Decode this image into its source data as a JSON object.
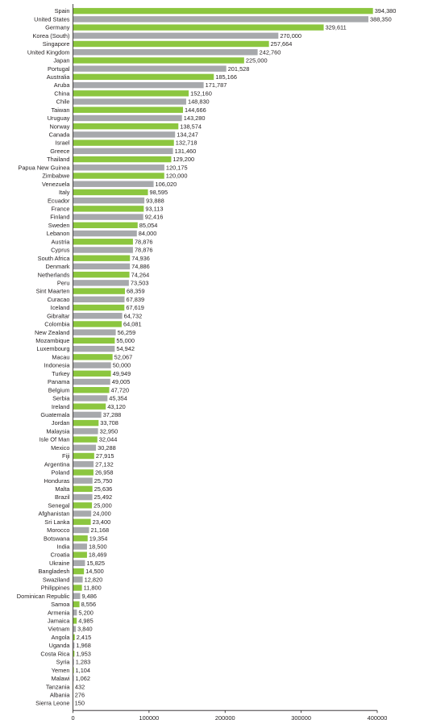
{
  "chart_data": {
    "type": "bar",
    "orientation": "horizontal",
    "colors": {
      "green": "#8cc63f",
      "gray": "#a7a9ac"
    },
    "xlim": [
      0,
      400000
    ],
    "xticks": [
      "0",
      "100000",
      "200000",
      "300000",
      "400000"
    ],
    "bars": [
      {
        "category": "Spain",
        "value": 394380,
        "label": "394,380",
        "color": "green"
      },
      {
        "category": "United States",
        "value": 388350,
        "label": "388,350",
        "color": "gray"
      },
      {
        "category": "Germany",
        "value": 329611,
        "label": "329,611",
        "color": "green"
      },
      {
        "category": "Korea (South)",
        "value": 270000,
        "label": "270,000",
        "color": "gray"
      },
      {
        "category": "Singapore",
        "value": 257664,
        "label": "257,664",
        "color": "green"
      },
      {
        "category": "United Kingdom",
        "value": 242760,
        "label": "242,760",
        "color": "gray"
      },
      {
        "category": "Japan",
        "value": 225000,
        "label": "225,000",
        "color": "green"
      },
      {
        "category": "Portugal",
        "value": 201528,
        "label": "201,528",
        "color": "gray"
      },
      {
        "category": "Australia",
        "value": 185166,
        "label": "185,166",
        "color": "green"
      },
      {
        "category": "Aruba",
        "value": 171787,
        "label": "171,787",
        "color": "gray"
      },
      {
        "category": "China",
        "value": 152160,
        "label": "152,160",
        "color": "green"
      },
      {
        "category": "Chile",
        "value": 148830,
        "label": "148,830",
        "color": "gray"
      },
      {
        "category": "Taiwan",
        "value": 144666,
        "label": "144,666",
        "color": "green"
      },
      {
        "category": "Uruguay",
        "value": 143280,
        "label": "143,280",
        "color": "gray"
      },
      {
        "category": "Norway",
        "value": 138574,
        "label": "138,574",
        "color": "green"
      },
      {
        "category": "Canada",
        "value": 134247,
        "label": "134,247",
        "color": "gray"
      },
      {
        "category": "Israel",
        "value": 132718,
        "label": "132,718",
        "color": "green"
      },
      {
        "category": "Greece",
        "value": 131460,
        "label": "131,460",
        "color": "gray"
      },
      {
        "category": "Thailand",
        "value": 129200,
        "label": "129,200",
        "color": "green"
      },
      {
        "category": "Papua New Guinea",
        "value": 120175,
        "label": "120,175",
        "color": "gray"
      },
      {
        "category": "Zimbabwe",
        "value": 120000,
        "label": "120,000",
        "color": "green"
      },
      {
        "category": "Venezuela",
        "value": 106020,
        "label": "106,020",
        "color": "gray"
      },
      {
        "category": "Italy",
        "value": 98595,
        "label": "98,595",
        "color": "green"
      },
      {
        "category": "Ecuador",
        "value": 93888,
        "label": "93,888",
        "color": "gray"
      },
      {
        "category": "France",
        "value": 93113,
        "label": "93,113",
        "color": "green"
      },
      {
        "category": "Finland",
        "value": 92416,
        "label": "92,416",
        "color": "gray"
      },
      {
        "category": "Sweden",
        "value": 85054,
        "label": "85,054",
        "color": "green"
      },
      {
        "category": "Lebanon",
        "value": 84000,
        "label": "84,000",
        "color": "gray"
      },
      {
        "category": "Austria",
        "value": 78876,
        "label": "78,876",
        "color": "green"
      },
      {
        "category": "Cyprus",
        "value": 78876,
        "label": "78,876",
        "color": "gray"
      },
      {
        "category": "South Africa",
        "value": 74936,
        "label": "74,936",
        "color": "green"
      },
      {
        "category": "Denmark",
        "value": 74886,
        "label": "74,886",
        "color": "gray"
      },
      {
        "category": "Netherlands",
        "value": 74264,
        "label": "74,264",
        "color": "green"
      },
      {
        "category": "Peru",
        "value": 73503,
        "label": "73,503",
        "color": "gray"
      },
      {
        "category": "Sint Maarten",
        "value": 68359,
        "label": "68,359",
        "color": "green"
      },
      {
        "category": "Curacao",
        "value": 67839,
        "label": "67,839",
        "color": "gray"
      },
      {
        "category": "Iceland",
        "value": 67619,
        "label": "67,619",
        "color": "green"
      },
      {
        "category": "Gibraltar",
        "value": 64732,
        "label": "64,732",
        "color": "gray"
      },
      {
        "category": "Colombia",
        "value": 64081,
        "label": "64,081",
        "color": "green"
      },
      {
        "category": "New Zealand",
        "value": 56259,
        "label": "56,259",
        "color": "gray"
      },
      {
        "category": "Mozambique",
        "value": 55000,
        "label": "55,000",
        "color": "green"
      },
      {
        "category": "Luxembourg",
        "value": 54942,
        "label": "54,942",
        "color": "gray"
      },
      {
        "category": "Macau",
        "value": 52067,
        "label": "52,067",
        "color": "green"
      },
      {
        "category": "Indonesia",
        "value": 50000,
        "label": "50,000",
        "color": "gray"
      },
      {
        "category": "Turkey",
        "value": 49949,
        "label": "49,949",
        "color": "green"
      },
      {
        "category": "Panama",
        "value": 49005,
        "label": "49,005",
        "color": "gray"
      },
      {
        "category": "Belgium",
        "value": 47720,
        "label": "47,720",
        "color": "green"
      },
      {
        "category": "Serbia",
        "value": 45354,
        "label": "45,354",
        "color": "gray"
      },
      {
        "category": "Ireland",
        "value": 43120,
        "label": "43,120",
        "color": "green"
      },
      {
        "category": "Guatemala",
        "value": 37288,
        "label": "37,288",
        "color": "gray"
      },
      {
        "category": "Jordan",
        "value": 33708,
        "label": "33,708",
        "color": "green"
      },
      {
        "category": "Malaysia",
        "value": 32950,
        "label": "32,950",
        "color": "gray"
      },
      {
        "category": "Isle Of Man",
        "value": 32044,
        "label": "32,044",
        "color": "green"
      },
      {
        "category": "Mexico",
        "value": 30288,
        "label": "30,288",
        "color": "gray"
      },
      {
        "category": "Fiji",
        "value": 27915,
        "label": "27,915",
        "color": "green"
      },
      {
        "category": "Argentina",
        "value": 27132,
        "label": "27,132",
        "color": "gray"
      },
      {
        "category": "Poland",
        "value": 26958,
        "label": "26,958",
        "color": "green"
      },
      {
        "category": "Honduras",
        "value": 25750,
        "label": "25,750",
        "color": "gray"
      },
      {
        "category": "Malta",
        "value": 25636,
        "label": "25,636",
        "color": "green"
      },
      {
        "category": "Brazil",
        "value": 25492,
        "label": "25,492",
        "color": "gray"
      },
      {
        "category": "Senegal",
        "value": 25000,
        "label": "25,000",
        "color": "green"
      },
      {
        "category": "Afghanistan",
        "value": 24000,
        "label": "24,000",
        "color": "gray"
      },
      {
        "category": "Sri Lanka",
        "value": 23400,
        "label": "23,400",
        "color": "green"
      },
      {
        "category": "Morocco",
        "value": 21168,
        "label": "21,168",
        "color": "gray"
      },
      {
        "category": "Botswana",
        "value": 19354,
        "label": "19,354",
        "color": "green"
      },
      {
        "category": "India",
        "value": 18500,
        "label": "18,500",
        "color": "gray"
      },
      {
        "category": "Croatia",
        "value": 18469,
        "label": "18,469",
        "color": "green"
      },
      {
        "category": "Ukraine",
        "value": 15825,
        "label": "15,825",
        "color": "gray"
      },
      {
        "category": "Bangladesh",
        "value": 14500,
        "label": "14,500",
        "color": "green"
      },
      {
        "category": "Swaziland",
        "value": 12820,
        "label": "12,820",
        "color": "gray"
      },
      {
        "category": "Philippines",
        "value": 11800,
        "label": "11,800",
        "color": "green"
      },
      {
        "category": "Dominican Republic",
        "value": 9486,
        "label": "9,486",
        "color": "gray"
      },
      {
        "category": "Samoa",
        "value": 8556,
        "label": "8,556",
        "color": "green"
      },
      {
        "category": "Armenia",
        "value": 5200,
        "label": "5,200",
        "color": "gray"
      },
      {
        "category": "Jamaica",
        "value": 4985,
        "label": "4,985",
        "color": "green"
      },
      {
        "category": "Vietnam",
        "value": 3840,
        "label": "3,840",
        "color": "gray"
      },
      {
        "category": "Angola",
        "value": 2415,
        "label": "2,415",
        "color": "green"
      },
      {
        "category": "Uganda",
        "value": 1968,
        "label": "1,968",
        "color": "gray"
      },
      {
        "category": "Costa Rica",
        "value": 1953,
        "label": "1,953",
        "color": "green"
      },
      {
        "category": "Syria",
        "value": 1283,
        "label": "1,283",
        "color": "gray"
      },
      {
        "category": "Yemen",
        "value": 1104,
        "label": "1,104",
        "color": "green"
      },
      {
        "category": "Malawi",
        "value": 1062,
        "label": "1,062",
        "color": "gray"
      },
      {
        "category": "Tanzania",
        "value": 432,
        "label": "432",
        "color": "green"
      },
      {
        "category": "Albania",
        "value": 276,
        "label": "276",
        "color": "gray"
      },
      {
        "category": "Sierra Leone",
        "value": 150,
        "label": "150",
        "color": "green"
      }
    ]
  }
}
